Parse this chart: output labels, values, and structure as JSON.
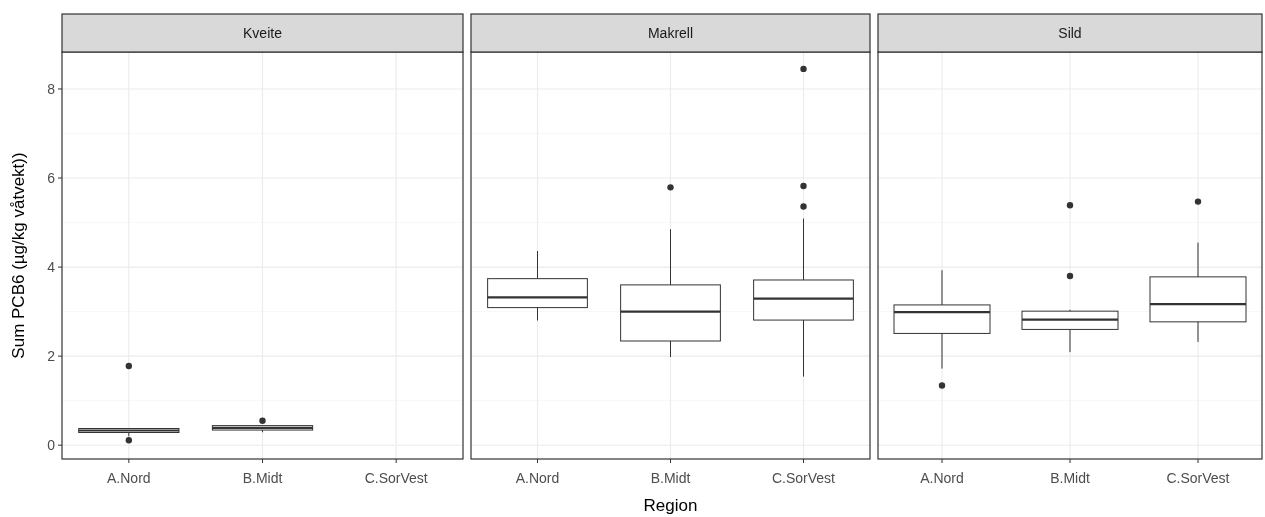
{
  "chart_data": [
    {
      "type": "box",
      "title": "Kveite",
      "ylabel": "Sum PCB6 (µg/kg våtvekt))",
      "categories": [
        "A.Nord",
        "B.Midt",
        "C.SorVest"
      ],
      "ylim": [
        -0.31,
        8.83
      ],
      "yticks": [
        0,
        2,
        4,
        6,
        8
      ],
      "grid": true,
      "boxes": [
        {
          "low": 0.2,
          "q1": 0.285,
          "median": 0.33,
          "q3": 0.375,
          "high": 0.375,
          "outliers": [
            1.78,
            0.11
          ]
        },
        {
          "low": 0.29,
          "q1": 0.34,
          "median": 0.39,
          "q3": 0.44,
          "high": 0.44,
          "outliers": [
            0.55
          ]
        },
        null
      ]
    },
    {
      "type": "box",
      "title": "Makrell",
      "xlabel": "Region",
      "categories": [
        "A.Nord",
        "B.Midt",
        "C.SorVest"
      ],
      "ylim": [
        -0.31,
        8.83
      ],
      "yticks": [
        0,
        2,
        4,
        6,
        8
      ],
      "grid": true,
      "tick_labels": "x",
      "boxes": [
        {
          "low": 2.8,
          "q1": 3.09,
          "median": 3.32,
          "q3": 3.74,
          "high": 4.36
        },
        {
          "low": 1.98,
          "q1": 2.34,
          "median": 3.0,
          "q3": 3.6,
          "high": 4.85,
          "outliers": [
            5.79
          ]
        },
        {
          "low": 1.54,
          "q1": 2.81,
          "median": 3.29,
          "q3": 3.71,
          "high": 5.09,
          "outliers": [
            8.45,
            5.82,
            5.36
          ]
        }
      ]
    },
    {
      "type": "box",
      "title": "Sild",
      "categories": [
        "A.Nord",
        "B.Midt",
        "C.SorVest"
      ],
      "ylim": [
        -0.31,
        8.83
      ],
      "yticks": [
        0,
        2,
        4,
        6,
        8
      ],
      "grid": true,
      "tick_labels": "x",
      "boxes": [
        {
          "low": 1.72,
          "q1": 2.51,
          "median": 2.99,
          "q3": 3.15,
          "high": 3.93,
          "outliers": [
            1.34
          ]
        },
        {
          "low": 2.09,
          "q1": 2.6,
          "median": 2.82,
          "q3": 3.01,
          "high": 3.04,
          "outliers": [
            5.39,
            3.8
          ]
        },
        {
          "low": 2.32,
          "q1": 2.77,
          "median": 3.17,
          "q3": 3.78,
          "high": 4.55,
          "outliers": [
            5.47
          ]
        }
      ]
    }
  ]
}
